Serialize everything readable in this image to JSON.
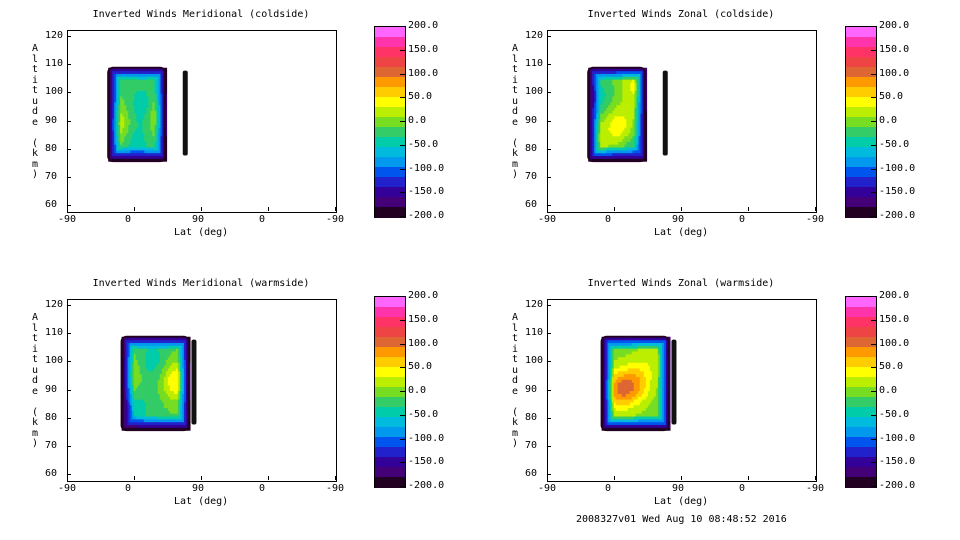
{
  "chart_data": [
    {
      "type": "contour",
      "title": "Inverted Winds Meridional (coldside)",
      "xlabel": "Lat (deg)",
      "ylabel": "Altitude (km)",
      "x_ticks": [
        "-90",
        "0",
        "90",
        "0",
        "-90"
      ],
      "y_ticks": [
        "60",
        "70",
        "80",
        "90",
        "100",
        "110",
        "120"
      ],
      "ylim": [
        58,
        122
      ],
      "colorbar_ticks": [
        "200.0",
        "150.0",
        "100.0",
        "50.0",
        "0.0",
        "-50.0",
        "-100.0",
        "-150.0",
        "-200.0"
      ],
      "colorbar_range": [
        -200,
        200
      ],
      "mask": {
        "x_range": [
          -30,
          55
        ],
        "alt_range": [
          76,
          109
        ],
        "stripe_x": 85,
        "stripe_alt": [
          78,
          108
        ]
      },
      "blobs": [
        {
          "x": 20,
          "alt": 95,
          "v": -40
        },
        {
          "x": -5,
          "alt": 92,
          "v": 10
        },
        {
          "x": 50,
          "alt": 92,
          "v": 60
        },
        {
          "x": -25,
          "alt": 88,
          "v": 50
        },
        {
          "x": 10,
          "alt": 82,
          "v": -30
        }
      ],
      "base_value": -15
    },
    {
      "type": "contour",
      "title": "Inverted Winds Zonal (coldside)",
      "xlabel": "Lat (deg)",
      "ylabel": "Altitude (km)",
      "x_ticks": [
        "-90",
        "0",
        "90",
        "0",
        "-90"
      ],
      "y_ticks": [
        "60",
        "70",
        "80",
        "90",
        "100",
        "110",
        "120"
      ],
      "ylim": [
        58,
        122
      ],
      "colorbar_ticks": [
        "200.0",
        "150.0",
        "100.0",
        "50.0",
        "0.0",
        "-50.0",
        "-100.0",
        "-150.0",
        "-200.0"
      ],
      "colorbar_range": [
        -200,
        200
      ],
      "mask": {
        "x_range": [
          -30,
          55
        ],
        "alt_range": [
          76,
          109
        ],
        "stripe_x": 85,
        "stripe_alt": [
          78,
          108
        ]
      },
      "blobs": [
        {
          "x": 15,
          "alt": 88,
          "v": 60
        },
        {
          "x": 40,
          "alt": 102,
          "v": 50
        },
        {
          "x": -20,
          "alt": 98,
          "v": -40
        },
        {
          "x": -25,
          "alt": 84,
          "v": 40
        },
        {
          "x": 35,
          "alt": 80,
          "v": -30
        }
      ],
      "base_value": -10
    },
    {
      "type": "contour",
      "title": "Inverted Winds Meridional (warmside)",
      "xlabel": "Lat (deg)",
      "ylabel": "Altitude (km)",
      "x_ticks": [
        "-90",
        "0",
        "90",
        "0",
        "-90"
      ],
      "y_ticks": [
        "60",
        "70",
        "80",
        "90",
        "100",
        "110",
        "120"
      ],
      "ylim": [
        58,
        122
      ],
      "colorbar_ticks": [
        "200.0",
        "150.0",
        "100.0",
        "50.0",
        "0.0",
        "-50.0",
        "-100.0",
        "-150.0",
        "-200.0"
      ],
      "colorbar_range": [
        -200,
        200
      ],
      "mask": {
        "x_range": [
          -10,
          90
        ],
        "alt_range": [
          76,
          109
        ],
        "stripe_x": 98,
        "stripe_alt": [
          78,
          108
        ]
      },
      "blobs": [
        {
          "x": -5,
          "alt": 95,
          "v": 40
        },
        {
          "x": 70,
          "alt": 93,
          "v": 70
        },
        {
          "x": 35,
          "alt": 100,
          "v": -30
        },
        {
          "x": 30,
          "alt": 85,
          "v": -10
        },
        {
          "x": 0,
          "alt": 82,
          "v": -40
        }
      ],
      "base_value": -15
    },
    {
      "type": "contour",
      "title": "Inverted Winds Zonal (warmside)",
      "xlabel": "Lat (deg)",
      "ylabel": "Altitude (km)",
      "x_ticks": [
        "-90",
        "0",
        "90",
        "0",
        "-90"
      ],
      "y_ticks": [
        "60",
        "70",
        "80",
        "90",
        "100",
        "110",
        "120"
      ],
      "ylim": [
        58,
        122
      ],
      "colorbar_ticks": [
        "200.0",
        "150.0",
        "100.0",
        "50.0",
        "0.0",
        "-50.0",
        "-100.0",
        "-150.0",
        "-200.0"
      ],
      "colorbar_range": [
        -200,
        200
      ],
      "mask": {
        "x_range": [
          -10,
          90
        ],
        "alt_range": [
          76,
          109
        ],
        "stripe_x": 98,
        "stripe_alt": [
          78,
          108
        ]
      },
      "blobs": [
        {
          "x": 15,
          "alt": 90,
          "v": 90
        },
        {
          "x": 40,
          "alt": 92,
          "v": 70
        },
        {
          "x": 60,
          "alt": 100,
          "v": 20
        },
        {
          "x": 0,
          "alt": 104,
          "v": 0
        }
      ],
      "base_value": 0
    }
  ],
  "colorbar_colors": [
    "#ff66ff",
    "#ff33aa",
    "#ff3366",
    "#ee4444",
    "#dd6633",
    "#ff9900",
    "#ffcc00",
    "#ffff00",
    "#bbee00",
    "#77dd22",
    "#33cc66",
    "#00ccaa",
    "#00bbdd",
    "#0099ee",
    "#0055ee",
    "#2222cc",
    "#330099",
    "#440077",
    "#220022"
  ],
  "footer": "2008327v01 Wed Aug 10 08:48:52 2016"
}
